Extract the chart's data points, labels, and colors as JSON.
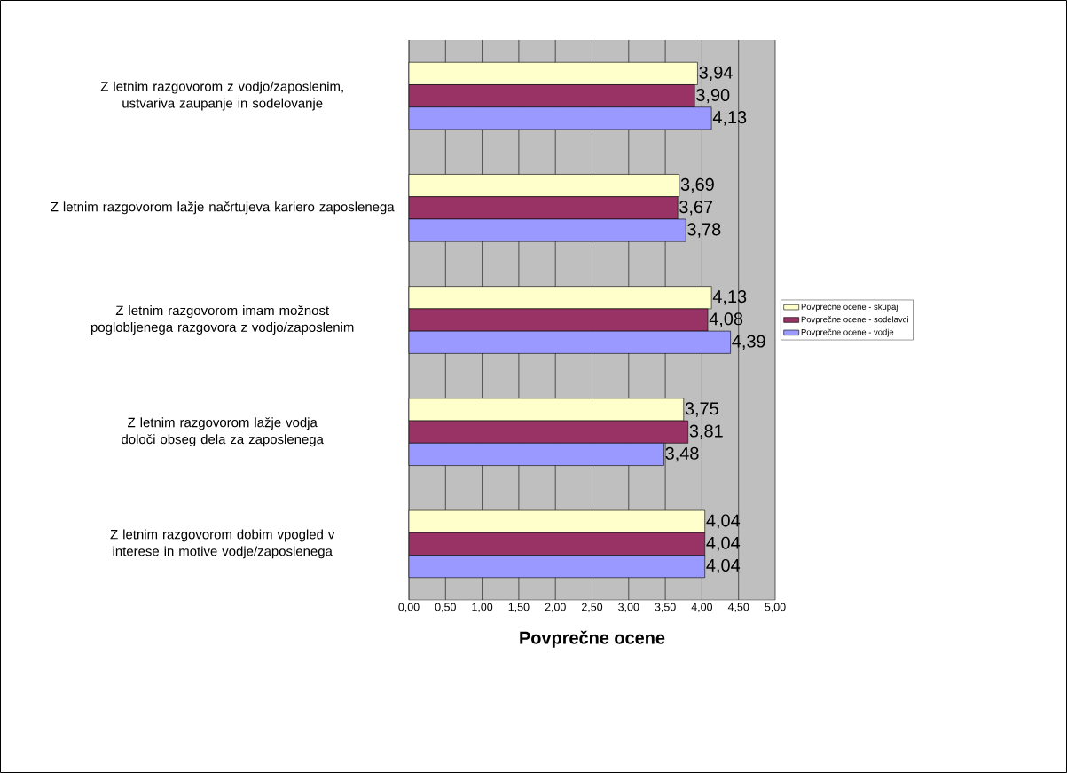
{
  "chart_data": {
    "type": "bar",
    "orientation": "horizontal",
    "xlabel": "Povprečne ocene",
    "categories": [
      "Z letnim razgovorom z vodjo/zaposlenim, ustvariva zaupanje in sodelovanje",
      "Z letnim razgovorom lažje načrtujeva kariero zaposlenega",
      "Z letnim razgovorom imam možnost poglobljenega razgovora z vodjo/zaposlenim",
      "Z letnim razgovorom lažje vodja določi obseg dela za zaposlenega",
      "Z letnim razgovorom dobim vpogled v interese in motive vodje/zaposlenega"
    ],
    "series": [
      {
        "name": "Povprečne ocene - skupaj",
        "color": "#ffffcc",
        "values": [
          3.94,
          3.69,
          4.13,
          3.75,
          4.04
        ],
        "value_labels": [
          "3,94",
          "3,69",
          "4,13",
          "3,75",
          "4,04"
        ]
      },
      {
        "name": "Povprečne ocene - sodelavci",
        "color": "#993366",
        "values": [
          3.9,
          3.67,
          4.08,
          3.81,
          4.04
        ],
        "value_labels": [
          "3,90",
          "3,67",
          "4,08",
          "3,81",
          "4,04"
        ]
      },
      {
        "name": "Povprečne ocene - vodje",
        "color": "#9999ff",
        "values": [
          4.13,
          3.78,
          4.39,
          3.48,
          4.04
        ],
        "value_labels": [
          "4,13",
          "3,78",
          "4,39",
          "3,48",
          "4,04"
        ]
      }
    ],
    "xlim": [
      0,
      5
    ],
    "xticks": [
      {
        "value": 0,
        "label": "0,00"
      },
      {
        "value": 0.5,
        "label": "0,50"
      },
      {
        "value": 1,
        "label": "1,00"
      },
      {
        "value": 1.5,
        "label": "1,50"
      },
      {
        "value": 2,
        "label": "2,00"
      },
      {
        "value": 2.5,
        "label": "2,50"
      },
      {
        "value": 3,
        "label": "3,00"
      },
      {
        "value": 3.5,
        "label": "3,50"
      },
      {
        "value": 4,
        "label": "4,00"
      },
      {
        "value": 4.5,
        "label": "4,50"
      },
      {
        "value": 5,
        "label": "5,00"
      }
    ],
    "grid": "x",
    "legend": "right"
  }
}
